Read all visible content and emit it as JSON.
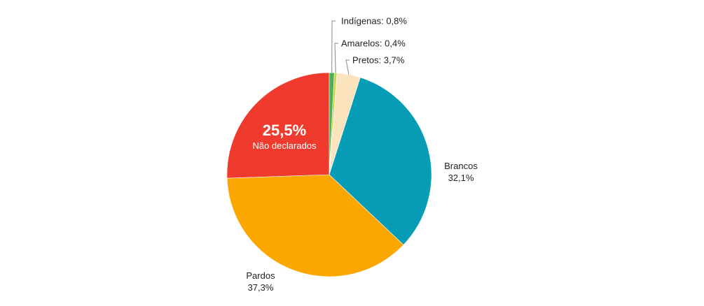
{
  "chart_data": {
    "type": "pie",
    "title": "",
    "slices": [
      {
        "name": "Indígenas",
        "value": 0.8,
        "label": "0,8%",
        "color": "#4caf50"
      },
      {
        "name": "Amarelos",
        "value": 0.4,
        "label": "0,4%",
        "color": "#c6d53a"
      },
      {
        "name": "Pretos",
        "value": 3.7,
        "label": "3,7%",
        "color": "#fbe3bd"
      },
      {
        "name": "Brancos",
        "value": 32.1,
        "label": "32,1%",
        "color": "#069cb6"
      },
      {
        "name": "Pardos",
        "value": 37.3,
        "label": "37,3%",
        "color": "#fca600"
      },
      {
        "name": "Não declarados",
        "value": 25.5,
        "label": "25,5%",
        "color": "#f03a2e"
      }
    ],
    "start": "12 o'clock",
    "direction": "clockwise",
    "highlighted_slice": "Não declarados"
  }
}
